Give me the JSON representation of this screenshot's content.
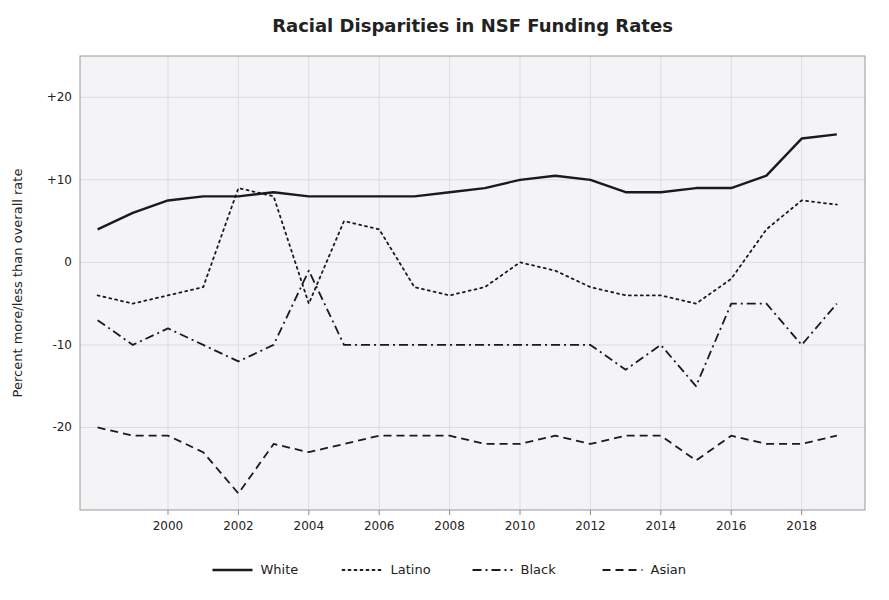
{
  "chart_data": {
    "type": "line",
    "title": "Racial Disparities in NSF Funding Rates",
    "y_label": "Percent more/less than overall rate",
    "x": [
      1998,
      1999,
      2000,
      2001,
      2002,
      2003,
      2004,
      2005,
      2006,
      2007,
      2008,
      2009,
      2010,
      2011,
      2012,
      2013,
      2014,
      2015,
      2016,
      2017,
      2018,
      2019
    ],
    "series": [
      {
        "name": "White",
        "color": "#1a1a1a",
        "line_style": "solid",
        "values": [
          4,
          6,
          7.5,
          8,
          8,
          8.5,
          8,
          8,
          8,
          8,
          8.5,
          9,
          10,
          10.5,
          10,
          8.5,
          8.5,
          9,
          9,
          10.5,
          15,
          15.5
        ]
      },
      {
        "name": "Latino",
        "color": "#1a1a1a",
        "line_style": "dotted",
        "values": [
          -4,
          -5,
          -4,
          -3,
          9,
          8,
          -5,
          5,
          4,
          -3,
          -4,
          -3,
          0,
          -1,
          -3,
          -4,
          -4,
          -5,
          -2,
          4,
          7.5,
          7
        ]
      },
      {
        "name": "Black",
        "color": "#1a1a1a",
        "line_style": "dashdot",
        "values": [
          -7,
          -10,
          -8,
          -10,
          -12,
          -10,
          -1,
          -10,
          -10,
          -10,
          -10,
          -10,
          -10,
          -10,
          -10,
          -13,
          -10,
          -15,
          -5,
          -5,
          -10,
          -5
        ]
      },
      {
        "name": "Asian",
        "color": "#1a1a1a",
        "line_style": "dashed",
        "values": [
          -20,
          -21,
          -21,
          -23,
          -28,
          -22,
          -23,
          -22,
          -21,
          -21,
          -21,
          -22,
          -22,
          -21,
          -22,
          -21,
          -21,
          -24,
          -21,
          -22,
          -22,
          -21
        ]
      }
    ],
    "xlim": [
      1997.5,
      2019.8
    ],
    "xticks": [
      2000,
      2002,
      2004,
      2006,
      2008,
      2010,
      2012,
      2014,
      2016,
      2018
    ],
    "ylim": [
      -30,
      25
    ],
    "yticks": [
      -20,
      -10,
      0,
      {
        "value": 10,
        "label": "+10"
      },
      {
        "value": 20,
        "label": "+20"
      }
    ],
    "grid": true,
    "legend": "bottom"
  }
}
